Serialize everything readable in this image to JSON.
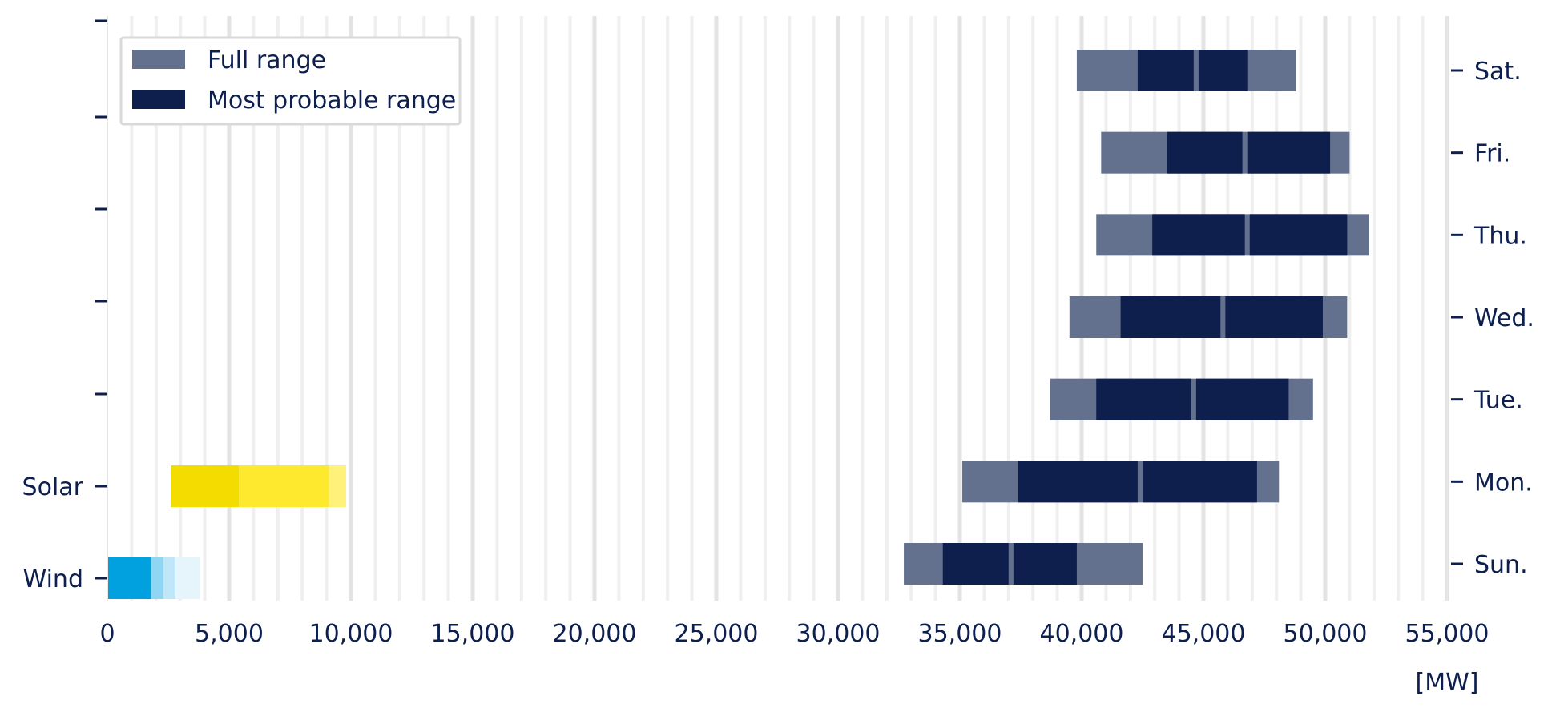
{
  "chart_data": {
    "type": "bar",
    "orientation": "horizontal-range",
    "x_unit_label": "[MW]",
    "xlim": [
      0,
      55000
    ],
    "x_ticks": [
      "0",
      "5,000",
      "10,000",
      "15,000",
      "20,000",
      "25,000",
      "30,000",
      "35,000",
      "40,000",
      "45,000",
      "50,000",
      "55,000"
    ],
    "x_tick_values": [
      0,
      5000,
      10000,
      15000,
      20000,
      25000,
      30000,
      35000,
      40000,
      45000,
      50000,
      55000
    ],
    "grid": true,
    "legend": {
      "placement": "top-left",
      "entries": [
        {
          "label": "Full range",
          "color": "#63708e"
        },
        {
          "label": "Most probable range",
          "color": "#0f1f4d"
        }
      ]
    },
    "left_axis_categories": [
      "Wind",
      "Solar",
      "",
      "",
      "",
      "",
      ""
    ],
    "right_axis_categories": [
      "Sun.",
      "Mon.",
      "Tue.",
      "Wed.",
      "Thu.",
      "Fri.",
      "Sat."
    ],
    "renewables": [
      {
        "name": "Wind",
        "segments": [
          {
            "from": 0,
            "to": 1800,
            "color": "#00a1de"
          },
          {
            "from": 1800,
            "to": 2300,
            "color": "#8fd6f2"
          },
          {
            "from": 2300,
            "to": 2800,
            "color": "#bfe7f8"
          },
          {
            "from": 2800,
            "to": 3800,
            "color": "#e6f5fc"
          }
        ]
      },
      {
        "name": "Solar",
        "segments": [
          {
            "from": 2600,
            "to": 5400,
            "color": "#f5dc00"
          },
          {
            "from": 5400,
            "to": 9100,
            "color": "#ffe92e"
          },
          {
            "from": 9100,
            "to": 9800,
            "color": "#fff17a"
          }
        ]
      }
    ],
    "days": [
      {
        "day": "Sun.",
        "full_range": [
          32700,
          42500
        ],
        "probable_ranges": [
          [
            34300,
            37000
          ],
          [
            37200,
            39800
          ]
        ]
      },
      {
        "day": "Mon.",
        "full_range": [
          35100,
          48100
        ],
        "probable_ranges": [
          [
            37400,
            42300
          ],
          [
            42500,
            47200
          ]
        ]
      },
      {
        "day": "Tue.",
        "full_range": [
          38700,
          49500
        ],
        "probable_ranges": [
          [
            40600,
            44500
          ],
          [
            44700,
            48500
          ]
        ]
      },
      {
        "day": "Wed.",
        "full_range": [
          39500,
          50900
        ],
        "probable_ranges": [
          [
            41600,
            45700
          ],
          [
            45900,
            49900
          ]
        ]
      },
      {
        "day": "Thu.",
        "full_range": [
          40600,
          51800
        ],
        "probable_ranges": [
          [
            42900,
            46700
          ],
          [
            46900,
            50900
          ]
        ]
      },
      {
        "day": "Fri.",
        "full_range": [
          40800,
          51000
        ],
        "probable_ranges": [
          [
            43500,
            46600
          ],
          [
            46800,
            50200
          ]
        ]
      },
      {
        "day": "Sat.",
        "full_range": [
          39800,
          48800
        ],
        "probable_ranges": [
          [
            42300,
            44600
          ],
          [
            44800,
            46800
          ]
        ]
      }
    ]
  }
}
